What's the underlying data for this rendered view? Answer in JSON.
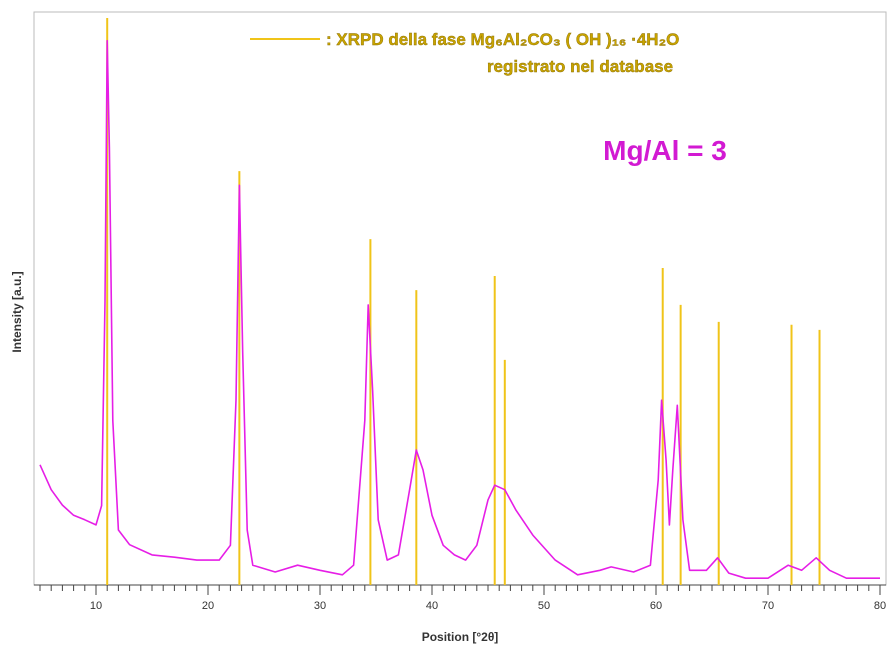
{
  "chart_data": {
    "type": "line",
    "xlabel": "Position [°2θ]",
    "ylabel": "Intensity [a.u.]",
    "annotation": "Mg/Al = 3",
    "legend_note": "registrato nel database",
    "xlim": [
      5,
      80
    ],
    "ylim": [
      0,
      100
    ],
    "xticks": [
      10,
      20,
      30,
      40,
      50,
      60,
      70,
      80
    ],
    "xminorticks": [
      5,
      6,
      7,
      8,
      9,
      10,
      11,
      12,
      13,
      14,
      15,
      16,
      17,
      18,
      19,
      20,
      21,
      22,
      23,
      24,
      25,
      26,
      27,
      28,
      29,
      30,
      31,
      32,
      33,
      34,
      35,
      36,
      37,
      38,
      39,
      40,
      41,
      42,
      43,
      44,
      45,
      46,
      47,
      48,
      49,
      50,
      51,
      52,
      53,
      54,
      55,
      56,
      57,
      58,
      59,
      60,
      61,
      62,
      63,
      64,
      65,
      66,
      67,
      68,
      69,
      70,
      71,
      72,
      73,
      74,
      75,
      76,
      77,
      78,
      79,
      80
    ],
    "series": [
      {
        "color": "#e61ee6",
        "type": "line",
        "x": [
          5,
          6,
          7,
          8,
          9,
          10,
          10.5,
          10.8,
          11.0,
          11.2,
          11.5,
          12,
          13,
          15,
          17,
          19,
          21,
          22,
          22.5,
          22.8,
          23.1,
          23.5,
          24,
          26,
          28,
          30,
          32,
          33,
          34,
          34.3,
          34.7,
          35.2,
          36,
          37,
          38,
          38.6,
          39.2,
          40,
          41,
          42,
          43,
          44,
          45,
          45.6,
          46.5,
          47.5,
          49,
          51,
          53,
          55,
          56,
          58,
          59.5,
          60.2,
          60.5,
          60.9,
          61.2,
          61.5,
          61.9,
          62.4,
          63,
          64.5,
          65.5,
          66.5,
          68,
          70,
          71.8,
          73,
          74.3,
          75.5,
          77,
          79,
          80
        ],
        "values": [
          21.2,
          16.8,
          14.1,
          12.3,
          11.5,
          10.6,
          14,
          50,
          96,
          77,
          29,
          9.7,
          7.1,
          5.3,
          4.9,
          4.4,
          4.4,
          7,
          32.6,
          70.5,
          41,
          9.7,
          3.5,
          2.3,
          3.5,
          2.6,
          1.8,
          3.5,
          29,
          49.4,
          34.4,
          11.5,
          4.4,
          5.3,
          16.8,
          23.8,
          20.3,
          12.3,
          7,
          5.3,
          4.4,
          7,
          15,
          17.6,
          16.8,
          13.2,
          8.8,
          4.4,
          1.8,
          2.6,
          3.2,
          2.3,
          3.5,
          18.5,
          32.6,
          22,
          10.6,
          20.3,
          31.7,
          11.5,
          2.6,
          2.6,
          4.8,
          2.1,
          1.2,
          1.2,
          3.5,
          2.6,
          4.8,
          2.6,
          1.2,
          1.2,
          1.2
        ]
      },
      {
        "name": ": XRPD della fase Mg₆Al₂CO₃ ( OH )₁₆ ·4H₂O",
        "color": "#f0c419",
        "type": "stem",
        "x": [
          11.0,
          22.8,
          34.5,
          38.6,
          45.6,
          46.5,
          60.6,
          62.2,
          65.6,
          72.1,
          74.6
        ],
        "values": [
          100,
          73,
          61,
          52,
          54.5,
          39.7,
          55.9,
          49.4,
          46.4,
          45.9,
          45
        ]
      }
    ]
  }
}
